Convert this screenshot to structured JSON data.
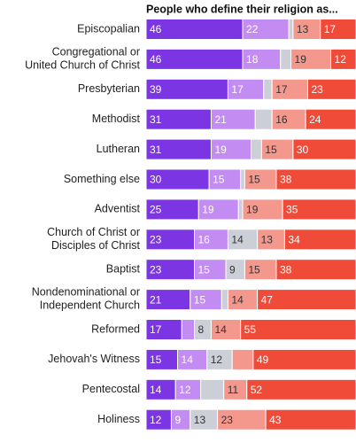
{
  "chart_data": {
    "type": "stacked-barh",
    "title": "People who define their religion as...",
    "categories": [
      "Episcopalian",
      "Congregational or\nUnited Church of Christ",
      "Presbyterian",
      "Methodist",
      "Lutheran",
      "Something else",
      "Adventist",
      "Church of Christ or\nDisciples of Christ",
      "Baptist",
      "Nondenominational or\nIndependent Church",
      "Reformed",
      "Jehovah's Witness",
      "Pentecostal",
      "Holiness"
    ],
    "xlim": [
      0,
      100
    ],
    "series": [
      {
        "color": "#7b35e3",
        "label_color": "#ffffff",
        "values": [
          46,
          46,
          39,
          31,
          31,
          30,
          25,
          23,
          23,
          21,
          17,
          15,
          14,
          12
        ],
        "value_labels": [
          "46",
          "46",
          "39",
          "31",
          "31",
          "30",
          "25",
          "23",
          "23",
          "21",
          "17",
          "15",
          "14",
          "12"
        ]
      },
      {
        "color": "#c38cf2",
        "label_color": "#ffffff",
        "values": [
          22,
          18,
          17,
          21,
          19,
          15,
          19,
          16,
          15,
          15,
          6,
          14,
          12,
          9
        ],
        "value_labels": [
          "22",
          "18",
          "17",
          "21",
          "19",
          "15",
          "19",
          "16",
          "15",
          "15",
          null,
          "14",
          "12",
          "9"
        ]
      },
      {
        "color": "#cdcfd8",
        "label_color": "#333333",
        "values": [
          2,
          5,
          4,
          8,
          5,
          2,
          2,
          14,
          9,
          3,
          8,
          12,
          11,
          13
        ],
        "value_labels": [
          null,
          null,
          null,
          null,
          null,
          null,
          null,
          "14",
          "9",
          null,
          "8",
          "12",
          null,
          "13"
        ]
      },
      {
        "color": "#f4978d",
        "label_color": "#333333",
        "values": [
          13,
          19,
          17,
          16,
          15,
          15,
          19,
          13,
          15,
          14,
          14,
          10,
          11,
          23
        ],
        "value_labels": [
          "13",
          "19",
          "17",
          "16",
          "15",
          "15",
          "19",
          "13",
          "15",
          "14",
          "14",
          null,
          "11",
          "23"
        ]
      },
      {
        "color": "#f04a38",
        "label_color": "#ffffff",
        "values": [
          17,
          12,
          23,
          24,
          30,
          38,
          35,
          34,
          38,
          47,
          55,
          49,
          52,
          43
        ],
        "value_labels": [
          "17",
          "12",
          "23",
          "24",
          "30",
          "38",
          "35",
          "34",
          "38",
          "47",
          "55",
          "49",
          "52",
          "43"
        ]
      }
    ]
  }
}
